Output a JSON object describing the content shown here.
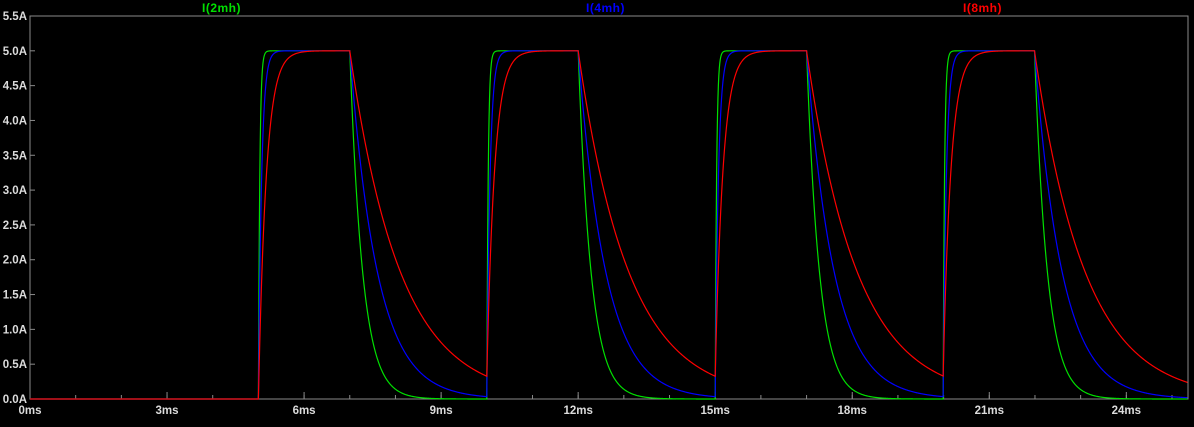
{
  "window": {
    "background_color": "#000000"
  },
  "chart_data": {
    "type": "line",
    "title": "",
    "grid": false,
    "legend_position": "top",
    "background_color": "#000000",
    "axis_color": "#dcdcdc",
    "border_color": "#8a8a8a",
    "xlim": [
      0,
      25.35
    ],
    "ylim": [
      0,
      5.5
    ],
    "x_unit": "ms",
    "y_unit": "A",
    "x_ticks": [
      {
        "value": 0,
        "label": "0ms"
      },
      {
        "value": 3,
        "label": "3ms"
      },
      {
        "value": 6,
        "label": "6ms"
      },
      {
        "value": 9,
        "label": "9ms"
      },
      {
        "value": 12,
        "label": "12ms"
      },
      {
        "value": 15,
        "label": "15ms"
      },
      {
        "value": 18,
        "label": "18ms"
      },
      {
        "value": 21,
        "label": "21ms"
      },
      {
        "value": 24,
        "label": "24ms"
      }
    ],
    "x_minor_tick_step": 1,
    "y_ticks": [
      {
        "value": 0.0,
        "label": "0.0A"
      },
      {
        "value": 0.5,
        "label": "0.5A"
      },
      {
        "value": 1.0,
        "label": "1.0A"
      },
      {
        "value": 1.5,
        "label": "1.5A"
      },
      {
        "value": 2.0,
        "label": "2.0A"
      },
      {
        "value": 2.5,
        "label": "2.5A"
      },
      {
        "value": 3.0,
        "label": "3.0A"
      },
      {
        "value": 3.5,
        "label": "3.5A"
      },
      {
        "value": 4.0,
        "label": "4.0A"
      },
      {
        "value": 4.5,
        "label": "4.5A"
      },
      {
        "value": 5.0,
        "label": "5.0A"
      },
      {
        "value": 5.5,
        "label": "5.5A"
      }
    ],
    "pulse": {
      "amplitude_A": 5,
      "on_times_ms": [
        5,
        10,
        15,
        20
      ],
      "off_times_ms": [
        7,
        12,
        17,
        22
      ]
    },
    "series": [
      {
        "name": "I(2mh)",
        "color": "#00e000",
        "tau_rise_ms": 0.03,
        "tau_decay_ms": 0.28
      },
      {
        "name": "I(4mh)",
        "color": "#0000ff",
        "tau_rise_ms": 0.07,
        "tau_decay_ms": 0.6
      },
      {
        "name": "I(8mh)",
        "color": "#ff0000",
        "tau_rise_ms": 0.17,
        "tau_decay_ms": 1.1
      }
    ],
    "waveform_description": "Periodic current pulses: 0A until 5ms, rises to 5A during on-intervals (5-7, 10-12, 15-17, 20-22 ms), exponential decay toward 0A between pulses; smaller inductance rises and decays faster."
  }
}
